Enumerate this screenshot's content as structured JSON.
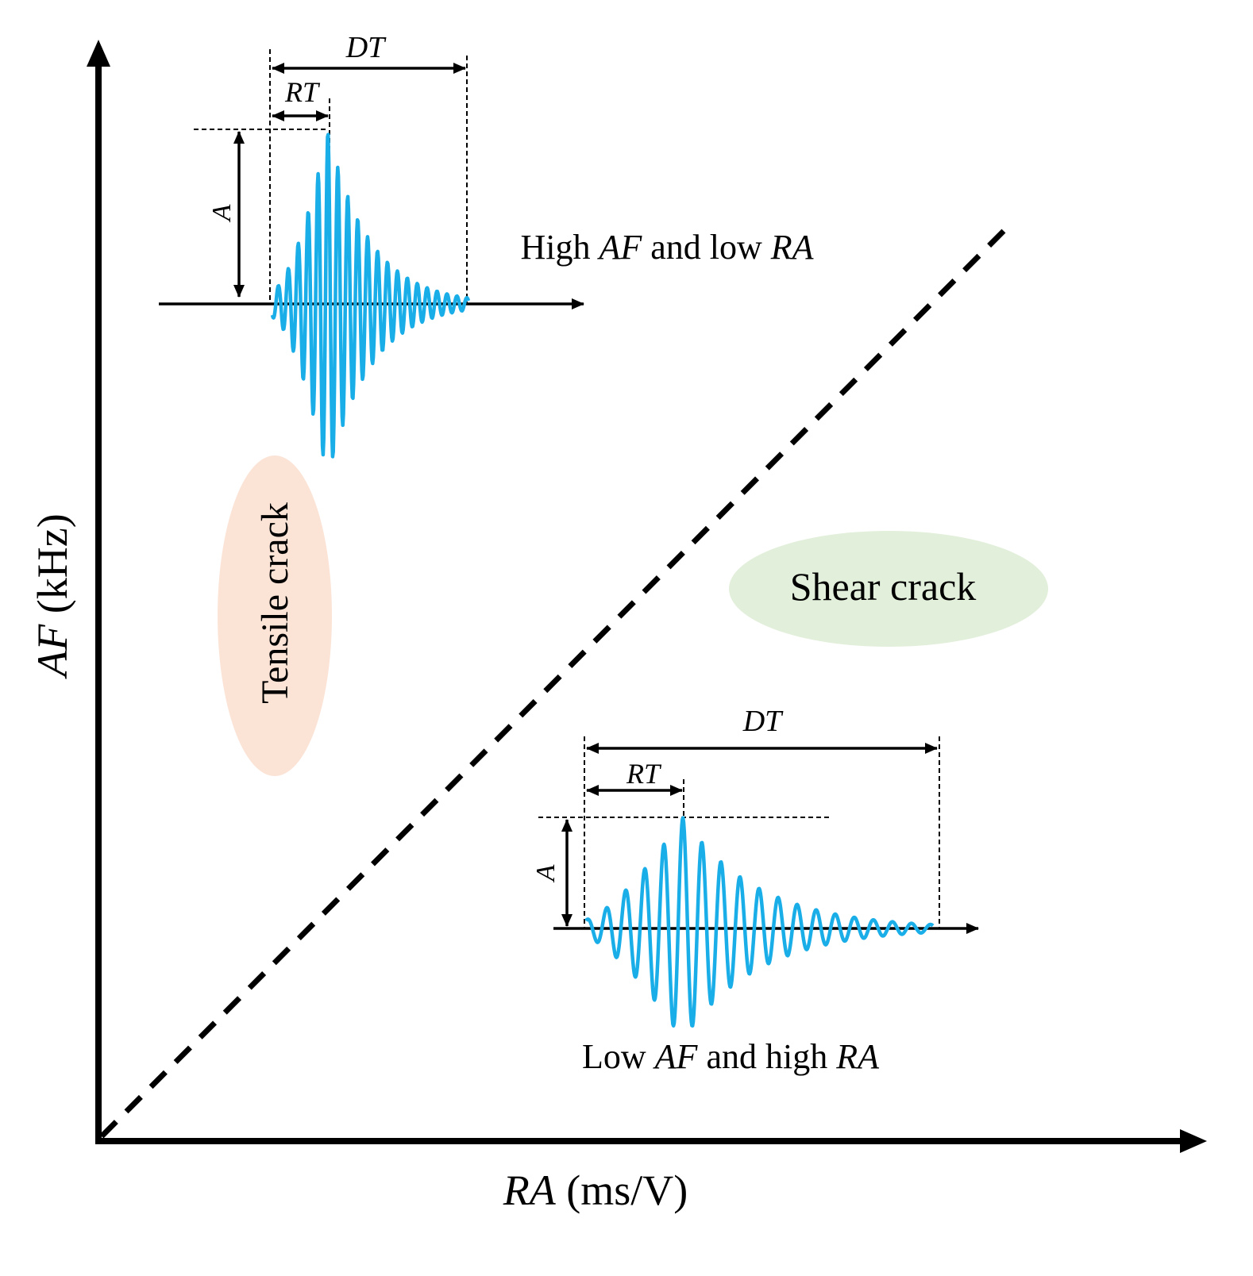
{
  "axes": {
    "x_label": {
      "var": "RA",
      "unit": " (ms/V)"
    },
    "y_label": {
      "var": "AF",
      "unit": " (kHz)"
    }
  },
  "regions": {
    "tensile": {
      "label": "Tensile crack",
      "color": "#fbe3d6"
    },
    "shear": {
      "label": "Shear crack",
      "color": "#e2efda"
    }
  },
  "waveforms": {
    "tensile": {
      "caption": {
        "pre": "High ",
        "v1": "AF",
        "mid": " and low ",
        "v2": "RA"
      },
      "dt_label": "DT",
      "rt_label": "RT",
      "a_label": "A"
    },
    "shear": {
      "caption": {
        "pre": "Low ",
        "v1": "AF",
        "mid": " and high ",
        "v2": "RA"
      },
      "dt_label": "DT",
      "rt_label": "RT",
      "a_label": "A"
    }
  },
  "colors": {
    "wave": "#1aaee8",
    "axis": "#000000"
  }
}
